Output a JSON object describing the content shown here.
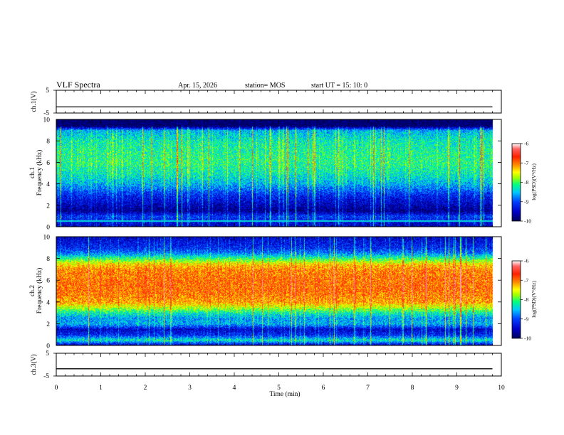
{
  "header": {
    "title": "VLF Spectra",
    "date": "Apr. 15, 2026",
    "station": "station= MOS",
    "start": "start  UT =   15: 10: 0"
  },
  "colors": {
    "spectrum": [
      "#00005a",
      "#0000c8",
      "#0040ff",
      "#00c8ff",
      "#00ff80",
      "#a0ff00",
      "#ffff00",
      "#ff9000",
      "#ff2000",
      "#ff6060"
    ],
    "trace": "#000000",
    "frame": "#000000",
    "background": "#ffffff"
  },
  "chart_data": [
    {
      "type": "line",
      "panel": "ch1_voltage",
      "ylabel": "ch.1(V)",
      "ylim": [
        -5,
        5
      ],
      "yticks": [
        "5",
        "-5"
      ],
      "x": [
        0,
        9.8
      ],
      "values": [
        -2.3,
        -2.3
      ]
    },
    {
      "type": "heatmap",
      "panel": "ch1_spectrogram",
      "ylabel_line1": "ch.1",
      "ylabel_line2": "Frequency (kHz)",
      "ylim": [
        0,
        10
      ],
      "yticks": [
        "0",
        "2",
        "4",
        "6",
        "8",
        "10"
      ],
      "xlim": [
        0,
        10
      ],
      "data_end_min": 9.8,
      "colorbar": {
        "label": "log(PSD)(V²/Hz)",
        "ticks": [
          "-6",
          "-7",
          "-8",
          "-9",
          "-10"
        ],
        "range": [
          -10,
          -6
        ]
      },
      "profile_freq_khz": [
        0,
        0.6,
        1.0,
        1.5,
        2.0,
        3.0,
        4.0,
        5.0,
        6.0,
        7.0,
        8.0,
        9.0,
        9.4,
        10
      ],
      "profile_log_psd": [
        -9.6,
        -9.3,
        -9.1,
        -9.8,
        -9.6,
        -9.2,
        -8.6,
        -8.3,
        -8.15,
        -8.2,
        -8.3,
        -8.6,
        -10,
        -10
      ]
    },
    {
      "type": "heatmap",
      "panel": "ch2_spectrogram",
      "ylabel_line1": "ch.2",
      "ylabel_line2": "Frequency (kHz)",
      "ylim": [
        0,
        10
      ],
      "yticks": [
        "0",
        "2",
        "4",
        "6",
        "8",
        "10"
      ],
      "xlim": [
        0,
        10
      ],
      "data_end_min": 9.8,
      "colorbar": {
        "label": "log(PSD)(V²/Hz)",
        "ticks": [
          "-6",
          "-7",
          "-8",
          "-9",
          "-10"
        ],
        "range": [
          -10,
          -6
        ]
      },
      "profile_freq_khz": [
        0,
        0.5,
        1.0,
        1.5,
        2.0,
        2.5,
        3.0,
        3.5,
        4.0,
        5.0,
        6.0,
        7.0,
        7.5,
        8.0,
        8.5,
        9.0,
        10
      ],
      "profile_log_psd": [
        -9.7,
        -8.3,
        -9.2,
        -9.5,
        -8.6,
        -8.7,
        -8.3,
        -7.7,
        -7.2,
        -7.0,
        -7.0,
        -7.1,
        -7.4,
        -8.1,
        -8.8,
        -9.2,
        -9.5
      ]
    },
    {
      "type": "line",
      "panel": "ch3_voltage",
      "ylabel": "ch.3(V)",
      "ylim": [
        -5,
        5
      ],
      "yticks": [
        "5",
        "-5"
      ],
      "x": [
        0,
        9.8
      ],
      "values": [
        -1.8,
        -1.8
      ]
    }
  ],
  "xaxis": {
    "label": "Time  (min)",
    "ticks": [
      "0",
      "1",
      "2",
      "3",
      "4",
      "5",
      "6",
      "7",
      "8",
      "9",
      "10"
    ]
  }
}
